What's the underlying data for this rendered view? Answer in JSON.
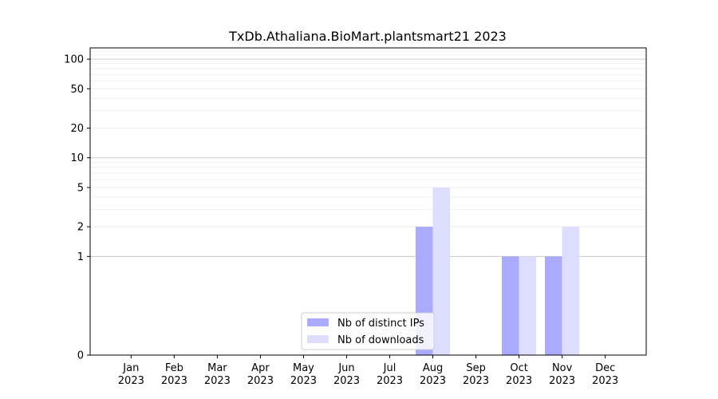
{
  "chart_data": {
    "type": "bar",
    "title": "TxDb.Athaliana.BioMart.plantsmart21 2023",
    "xlabel": "",
    "ylabel": "",
    "categories": [
      [
        "Jan",
        "2023"
      ],
      [
        "Feb",
        "2023"
      ],
      [
        "Mar",
        "2023"
      ],
      [
        "Apr",
        "2023"
      ],
      [
        "May",
        "2023"
      ],
      [
        "Jun",
        "2023"
      ],
      [
        "Jul",
        "2023"
      ],
      [
        "Aug",
        "2023"
      ],
      [
        "Sep",
        "2023"
      ],
      [
        "Oct",
        "2023"
      ],
      [
        "Nov",
        "2023"
      ],
      [
        "Dec",
        "2023"
      ]
    ],
    "series": [
      {
        "name": "Nb of distinct IPs",
        "color": "#aaaaff",
        "values": [
          0,
          0,
          0,
          0,
          0,
          0,
          0,
          2,
          0,
          1,
          1,
          0
        ]
      },
      {
        "name": "Nb of downloads",
        "color": "#ddddff",
        "values": [
          0,
          0,
          0,
          0,
          0,
          0,
          0,
          5,
          0,
          1,
          2,
          0
        ]
      }
    ],
    "yscale": "symlog",
    "ylim": [
      0,
      130
    ],
    "yticks": [
      0,
      1,
      2,
      5,
      10,
      20,
      50,
      100
    ],
    "ytick_labels": [
      "0",
      "1",
      "2",
      "5",
      "10",
      "20",
      "50",
      "100"
    ],
    "grid": true,
    "legend_position": "bottom-center"
  }
}
